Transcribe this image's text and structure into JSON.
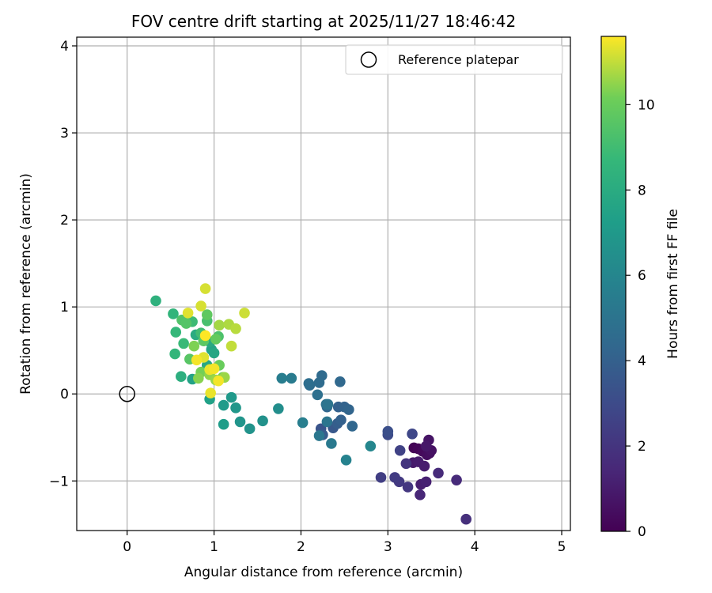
{
  "chart_data": {
    "type": "scatter",
    "title": "FOV centre drift starting at 2025/11/27 18:46:42",
    "xlabel": "Angular distance from reference (arcmin)",
    "ylabel": "Rotation from reference (arcmin)",
    "xlim": [
      -0.58,
      5.1
    ],
    "ylim": [
      -1.57,
      4.1
    ],
    "xticks": [
      0,
      1,
      2,
      3,
      4,
      5
    ],
    "yticks": [
      -1,
      0,
      1,
      2,
      3,
      4
    ],
    "grid": true,
    "legend": {
      "placement": "upper-right",
      "label": "Reference platepar"
    },
    "reference_point": {
      "x": 0,
      "y": 0,
      "marker": "open-circle"
    },
    "colorbar": {
      "label": "Hours from first FF file",
      "min": 0,
      "max": 11.6,
      "ticks": [
        0,
        2,
        4,
        6,
        8,
        10
      ],
      "colormap": "viridis"
    },
    "points": [
      {
        "x": 3.3,
        "y": -0.62,
        "c": 0.1
      },
      {
        "x": 3.35,
        "y": -0.63,
        "c": 0.2
      },
      {
        "x": 3.4,
        "y": -0.66,
        "c": 0.3
      },
      {
        "x": 3.45,
        "y": -0.7,
        "c": 0.4
      },
      {
        "x": 3.48,
        "y": -0.68,
        "c": 0.5
      },
      {
        "x": 3.5,
        "y": -0.65,
        "c": 0.6
      },
      {
        "x": 3.47,
        "y": -0.53,
        "c": 0.7
      },
      {
        "x": 3.44,
        "y": -0.6,
        "c": 0.8
      },
      {
        "x": 3.29,
        "y": -0.79,
        "c": 0.9
      },
      {
        "x": 3.35,
        "y": -0.78,
        "c": 1.0
      },
      {
        "x": 3.42,
        "y": -0.83,
        "c": 1.0
      },
      {
        "x": 3.38,
        "y": -1.04,
        "c": 1.1
      },
      {
        "x": 3.44,
        "y": -1.01,
        "c": 1.2
      },
      {
        "x": 3.37,
        "y": -1.16,
        "c": 1.4
      },
      {
        "x": 3.58,
        "y": -0.91,
        "c": 1.6
      },
      {
        "x": 3.79,
        "y": -0.99,
        "c": 1.6
      },
      {
        "x": 3.9,
        "y": -1.44,
        "c": 1.8
      },
      {
        "x": 3.21,
        "y": -0.8,
        "c": 2.0
      },
      {
        "x": 3.23,
        "y": -1.07,
        "c": 2.1
      },
      {
        "x": 3.13,
        "y": -1.01,
        "c": 2.2
      },
      {
        "x": 3.08,
        "y": -0.96,
        "c": 2.3
      },
      {
        "x": 2.92,
        "y": -0.96,
        "c": 2.4
      },
      {
        "x": 3.14,
        "y": -0.65,
        "c": 2.6
      },
      {
        "x": 3.28,
        "y": -0.46,
        "c": 2.8
      },
      {
        "x": 3.0,
        "y": -0.47,
        "c": 3.0
      },
      {
        "x": 3.0,
        "y": -0.43,
        "c": 3.2
      },
      {
        "x": 2.23,
        "y": -0.4,
        "c": 3.4
      },
      {
        "x": 2.37,
        "y": -0.39,
        "c": 3.6
      },
      {
        "x": 2.25,
        "y": -0.47,
        "c": 3.8
      },
      {
        "x": 2.42,
        "y": -0.34,
        "c": 3.9
      },
      {
        "x": 2.46,
        "y": -0.3,
        "c": 4.0
      },
      {
        "x": 2.43,
        "y": -0.15,
        "c": 4.0
      },
      {
        "x": 2.5,
        "y": -0.15,
        "c": 4.1
      },
      {
        "x": 2.55,
        "y": -0.18,
        "c": 4.2
      },
      {
        "x": 2.59,
        "y": -0.37,
        "c": 4.3
      },
      {
        "x": 2.3,
        "y": -0.15,
        "c": 4.3
      },
      {
        "x": 2.45,
        "y": 0.14,
        "c": 4.4
      },
      {
        "x": 2.24,
        "y": 0.21,
        "c": 4.5
      },
      {
        "x": 2.21,
        "y": 0.13,
        "c": 4.6
      },
      {
        "x": 2.1,
        "y": 0.1,
        "c": 4.6
      },
      {
        "x": 2.09,
        "y": 0.12,
        "c": 4.7
      },
      {
        "x": 2.19,
        "y": -0.01,
        "c": 4.8
      },
      {
        "x": 2.29,
        "y": -0.12,
        "c": 4.9
      },
      {
        "x": 2.31,
        "y": -0.12,
        "c": 5.0
      },
      {
        "x": 2.3,
        "y": -0.32,
        "c": 5.1
      },
      {
        "x": 2.21,
        "y": -0.48,
        "c": 5.2
      },
      {
        "x": 2.35,
        "y": -0.57,
        "c": 5.3
      },
      {
        "x": 1.89,
        "y": 0.18,
        "c": 5.4
      },
      {
        "x": 1.78,
        "y": 0.18,
        "c": 5.5
      },
      {
        "x": 2.02,
        "y": -0.33,
        "c": 5.6
      },
      {
        "x": 2.52,
        "y": -0.76,
        "c": 5.8
      },
      {
        "x": 2.8,
        "y": -0.6,
        "c": 6.0
      },
      {
        "x": 1.74,
        "y": -0.17,
        "c": 6.4
      },
      {
        "x": 1.56,
        "y": -0.31,
        "c": 6.6
      },
      {
        "x": 1.41,
        "y": -0.4,
        "c": 6.7
      },
      {
        "x": 1.3,
        "y": -0.32,
        "c": 6.8
      },
      {
        "x": 1.25,
        "y": -0.16,
        "c": 6.9
      },
      {
        "x": 1.2,
        "y": -0.04,
        "c": 7.0
      },
      {
        "x": 1.11,
        "y": -0.13,
        "c": 7.1
      },
      {
        "x": 1.11,
        "y": -0.35,
        "c": 7.2
      },
      {
        "x": 0.95,
        "y": -0.06,
        "c": 7.4
      },
      {
        "x": 0.75,
        "y": 0.17,
        "c": 7.5
      },
      {
        "x": 0.97,
        "y": 0.51,
        "c": 7.6
      },
      {
        "x": 1.0,
        "y": 0.47,
        "c": 7.7
      },
      {
        "x": 0.92,
        "y": 0.33,
        "c": 7.8
      },
      {
        "x": 0.95,
        "y": 0.6,
        "c": 7.9
      },
      {
        "x": 0.79,
        "y": 0.68,
        "c": 8.0
      },
      {
        "x": 0.88,
        "y": 0.61,
        "c": 8.1
      },
      {
        "x": 0.62,
        "y": 0.2,
        "c": 8.2
      },
      {
        "x": 0.33,
        "y": 1.07,
        "c": 8.3
      },
      {
        "x": 0.53,
        "y": 0.92,
        "c": 8.5
      },
      {
        "x": 0.55,
        "y": 0.46,
        "c": 8.6
      },
      {
        "x": 0.56,
        "y": 0.71,
        "c": 8.7
      },
      {
        "x": 0.65,
        "y": 0.58,
        "c": 8.8
      },
      {
        "x": 0.75,
        "y": 0.83,
        "c": 8.9
      },
      {
        "x": 0.85,
        "y": 0.7,
        "c": 9.0
      },
      {
        "x": 0.92,
        "y": 0.84,
        "c": 9.2
      },
      {
        "x": 1.05,
        "y": 0.66,
        "c": 9.3
      },
      {
        "x": 0.63,
        "y": 0.85,
        "c": 9.4
      },
      {
        "x": 0.68,
        "y": 0.81,
        "c": 9.5
      },
      {
        "x": 0.72,
        "y": 0.4,
        "c": 9.6
      },
      {
        "x": 0.88,
        "y": 0.61,
        "c": 9.7
      },
      {
        "x": 0.92,
        "y": 0.91,
        "c": 9.8
      },
      {
        "x": 1.02,
        "y": 0.63,
        "c": 9.9
      },
      {
        "x": 1.06,
        "y": 0.33,
        "c": 10.0
      },
      {
        "x": 1.1,
        "y": 0.19,
        "c": 10.1
      },
      {
        "x": 0.85,
        "y": 0.25,
        "c": 10.2
      },
      {
        "x": 0.77,
        "y": 0.55,
        "c": 10.3
      },
      {
        "x": 0.82,
        "y": 0.18,
        "c": 10.4
      },
      {
        "x": 0.95,
        "y": 0.22,
        "c": 10.5
      },
      {
        "x": 1.02,
        "y": 0.16,
        "c": 10.6
      },
      {
        "x": 1.12,
        "y": 0.19,
        "c": 10.6
      },
      {
        "x": 1.06,
        "y": 0.79,
        "c": 10.7
      },
      {
        "x": 1.17,
        "y": 0.8,
        "c": 10.8
      },
      {
        "x": 1.25,
        "y": 0.75,
        "c": 10.9
      },
      {
        "x": 1.2,
        "y": 0.55,
        "c": 11.0
      },
      {
        "x": 1.35,
        "y": 0.93,
        "c": 11.1
      },
      {
        "x": 0.9,
        "y": 1.21,
        "c": 11.2
      },
      {
        "x": 0.85,
        "y": 1.01,
        "c": 11.2
      },
      {
        "x": 0.7,
        "y": 0.93,
        "c": 11.3
      },
      {
        "x": 0.88,
        "y": 0.42,
        "c": 11.3
      },
      {
        "x": 0.95,
        "y": 0.28,
        "c": 11.4
      },
      {
        "x": 0.96,
        "y": 0.01,
        "c": 11.4
      },
      {
        "x": 1.0,
        "y": 0.29,
        "c": 11.5
      },
      {
        "x": 1.05,
        "y": 0.15,
        "c": 11.5
      },
      {
        "x": 0.8,
        "y": 0.39,
        "c": 11.5
      },
      {
        "x": 0.9,
        "y": 0.67,
        "c": 11.6
      }
    ]
  }
}
